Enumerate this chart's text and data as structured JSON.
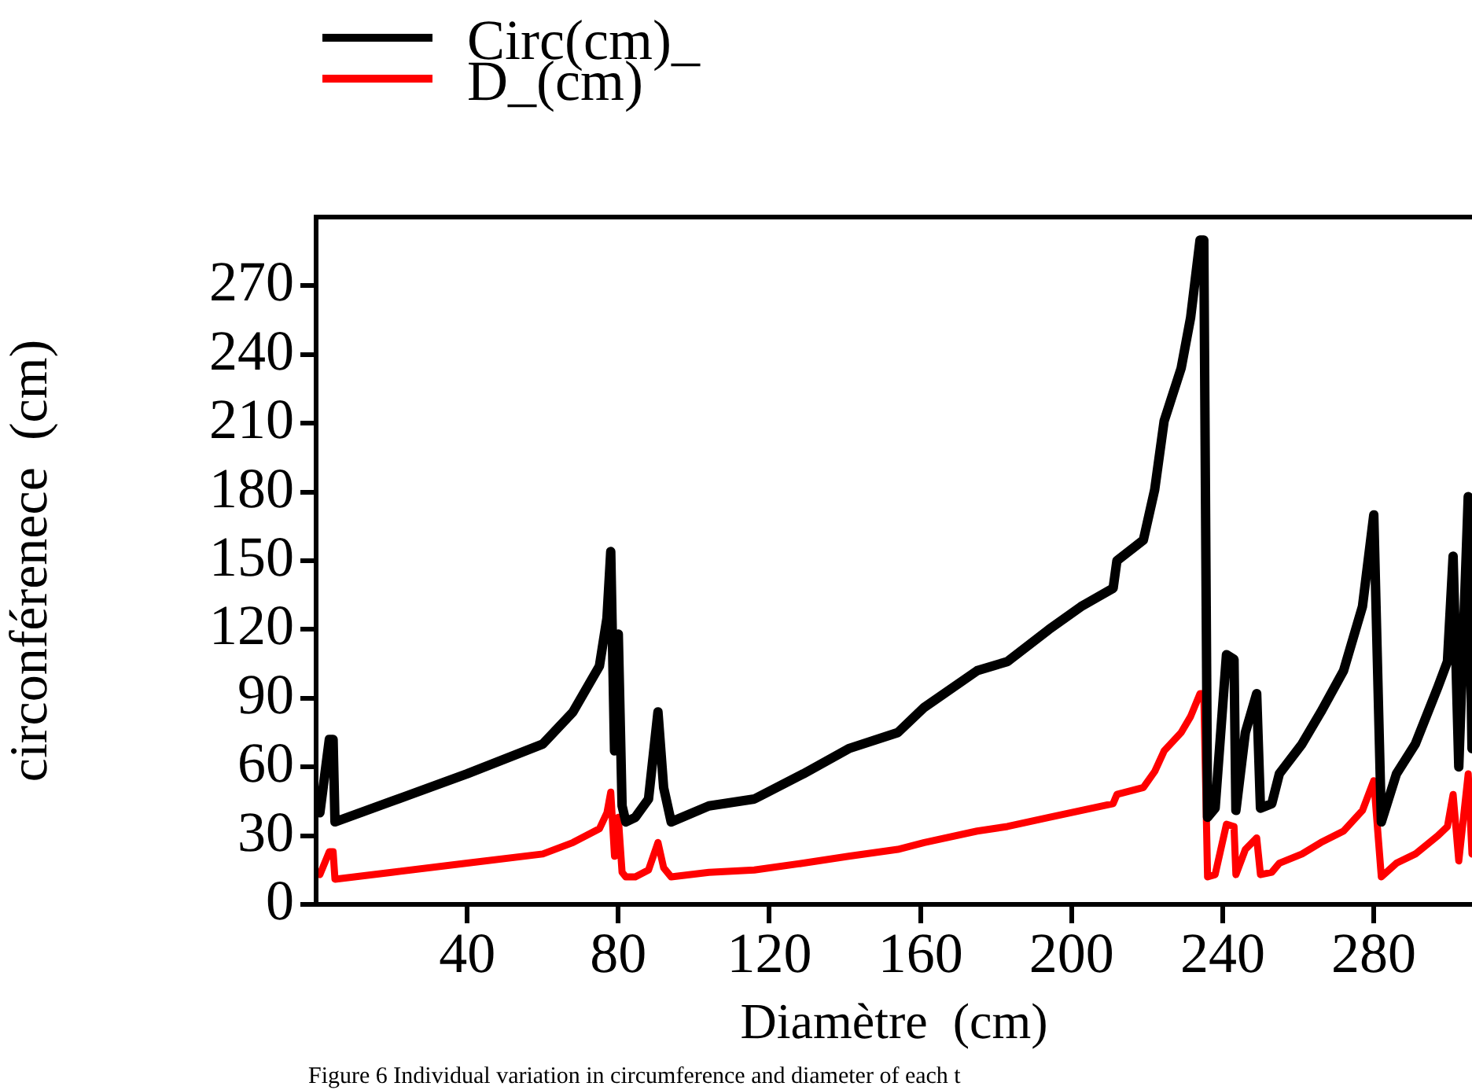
{
  "chart_data": {
    "type": "line",
    "xlabel": "Diamètre  (cm)",
    "ylabel": "circonférenece  (cm)",
    "legend": "top left",
    "grid": false,
    "marker": "none",
    "line_style": "solid",
    "xlim": [
      0,
      306
    ],
    "xticks": [
      40,
      80,
      120,
      160,
      200,
      240,
      280
    ],
    "ylim": [
      0,
      300
    ],
    "yticks": [
      0,
      30,
      60,
      90,
      120,
      150,
      180,
      210,
      240,
      270
    ],
    "annotations": [
      "Figure 6 Individual variation in circumference and diameter of each t"
    ],
    "series": [
      {
        "name": "Circ(cm)_",
        "color": "#000000",
        "x": [
          1,
          3.5,
          4.5,
          5,
          20,
          40,
          60,
          68,
          75,
          77,
          78,
          79,
          80,
          81,
          82,
          84.5,
          88,
          90.5,
          92,
          94,
          104,
          116,
          129,
          141,
          154,
          161,
          175,
          183,
          194,
          202.5,
          211,
          212,
          219,
          222,
          224.5,
          229,
          231.5,
          234,
          235,
          236,
          238,
          241,
          243,
          243.5,
          246,
          249,
          250,
          253,
          255,
          261,
          266,
          272,
          277,
          280,
          282,
          286,
          291,
          297,
          299.5,
          301,
          302.5,
          305,
          306
        ],
        "values": [
          40,
          72,
          72,
          36,
          45,
          57,
          70,
          84,
          104,
          125,
          154,
          67,
          118,
          43,
          36,
          38,
          46,
          84,
          51,
          36,
          43,
          46,
          57,
          68,
          75,
          86,
          102,
          106,
          120,
          130,
          138,
          150,
          159,
          181,
          211,
          234,
          256,
          290,
          290,
          38,
          42,
          109,
          107,
          41,
          75,
          92,
          42,
          44,
          57,
          70,
          84,
          102,
          130,
          170,
          36,
          57,
          70,
          95,
          106,
          152,
          60,
          178,
          68
        ]
      },
      {
        "name": "D_(cm)",
        "color": "#ff0000",
        "x": [
          1,
          3.5,
          4.5,
          5,
          20,
          40,
          60,
          68,
          75,
          77,
          78,
          79,
          80,
          81,
          82,
          84.5,
          88,
          90.5,
          92,
          94,
          104,
          116,
          129,
          141,
          154,
          161,
          175,
          183,
          194,
          202.5,
          211,
          212,
          219,
          222,
          224.5,
          229,
          231.5,
          234,
          235,
          236,
          238,
          241,
          243,
          243.5,
          246,
          249,
          250,
          253,
          255,
          261,
          266,
          272,
          277,
          280,
          282,
          286,
          291,
          297,
          299.5,
          301,
          302.5,
          305,
          306
        ],
        "values": [
          13,
          23,
          23,
          11,
          14,
          18,
          22,
          27,
          33,
          40,
          49,
          21,
          38,
          14,
          12,
          12,
          15,
          27,
          16,
          12,
          14,
          15,
          18,
          21,
          24,
          27,
          32,
          34,
          38,
          41,
          44,
          48,
          51,
          58,
          67,
          75,
          82,
          92,
          92,
          12,
          13,
          35,
          34,
          13,
          24,
          29,
          13,
          14,
          18,
          22,
          27,
          32,
          41,
          54,
          12,
          18,
          22,
          30,
          34,
          48,
          19,
          57,
          22
        ]
      }
    ]
  }
}
